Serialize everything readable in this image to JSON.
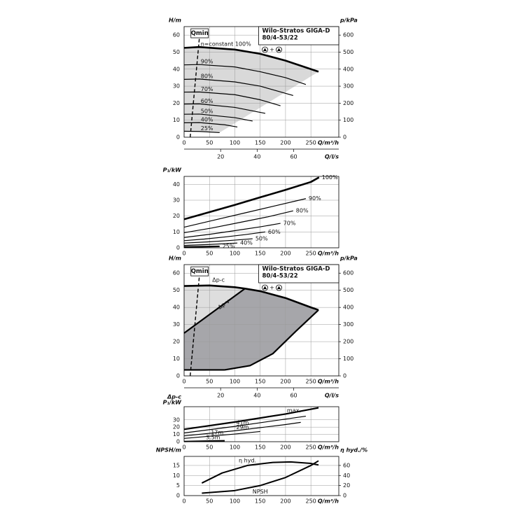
{
  "chart_data": [
    {
      "type": "line",
      "ylabel": "H/m",
      "y2label": "p/kPa",
      "xlabel": "Q/m³/h",
      "x2label": "Q/l/s",
      "model": [
        "Wilo-Stratos GIGA-D",
        "80/4-53/22"
      ],
      "symbol_join": "+",
      "xlim": [
        0,
        305
      ],
      "xticks": [
        0,
        50,
        100,
        150,
        200,
        250
      ],
      "x2lim": [
        0,
        84.7
      ],
      "x2ticks": [
        20,
        40,
        60
      ],
      "ylim": [
        0,
        65
      ],
      "yticks": [
        0,
        10,
        20,
        30,
        40,
        50,
        60
      ],
      "y2lim": [
        0,
        650
      ],
      "y2ticks": [
        0,
        100,
        200,
        300,
        400,
        500,
        600
      ],
      "grid": true,
      "fill_color": "#d9d9d9",
      "series": [
        {
          "name": "n=constant 100%",
          "color": "#000000",
          "width": 2.6,
          "x": [
            0,
            30,
            100,
            150,
            200,
            250,
            265
          ],
          "values": [
            52.5,
            53,
            51.5,
            49,
            45,
            40,
            38.5
          ]
        },
        {
          "name": "90%",
          "color": "#000000",
          "width": 1.2,
          "x": [
            0,
            30,
            100,
            150,
            200,
            240
          ],
          "values": [
            42.5,
            42.7,
            41.3,
            38.5,
            35,
            31
          ]
        },
        {
          "name": "80%",
          "color": "#000000",
          "width": 1.2,
          "x": [
            0,
            30,
            100,
            150,
            215
          ],
          "values": [
            34,
            34.2,
            32.5,
            30,
            24.5
          ]
        },
        {
          "name": "70%",
          "color": "#000000",
          "width": 1.2,
          "x": [
            0,
            30,
            100,
            150,
            190
          ],
          "values": [
            26.5,
            26.6,
            25,
            22,
            18.5
          ]
        },
        {
          "name": "60%",
          "color": "#000000",
          "width": 1.2,
          "x": [
            0,
            30,
            100,
            160
          ],
          "values": [
            19.5,
            19.6,
            17.5,
            14
          ]
        },
        {
          "name": "50%",
          "color": "#000000",
          "width": 1.2,
          "x": [
            0,
            30,
            100,
            135
          ],
          "values": [
            13.5,
            13.6,
            11.5,
            9.5
          ]
        },
        {
          "name": "40%",
          "color": "#000000",
          "width": 1.2,
          "x": [
            0,
            30,
            80,
            105
          ],
          "values": [
            8.5,
            8.6,
            7.3,
            6
          ]
        },
        {
          "name": "25%",
          "color": "#000000",
          "width": 1.2,
          "x": [
            0,
            30,
            70
          ],
          "values": [
            3.5,
            3.4,
            2.7
          ]
        },
        {
          "name": "Qmin",
          "color": "#000000",
          "width": 1.4,
          "dash": true,
          "x": [
            12,
            30
          ],
          "values": [
            0,
            58
          ]
        }
      ]
    },
    {
      "type": "line",
      "ylabel": "P₁/kW",
      "xlabel": "Q/m³/h",
      "xlim": [
        0,
        305
      ],
      "xticks": [
        0,
        50,
        100,
        150,
        200,
        250
      ],
      "ylim": [
        0,
        45
      ],
      "yticks": [
        0,
        10,
        20,
        30,
        40
      ],
      "grid": true,
      "series": [
        {
          "name": "100%",
          "color": "#000000",
          "width": 2.6,
          "x": [
            0,
            50,
            100,
            150,
            200,
            250,
            266
          ],
          "values": [
            18,
            22.5,
            27,
            31.8,
            36.5,
            41.5,
            44.4
          ]
        },
        {
          "name": "90%",
          "color": "#000000",
          "width": 1.2,
          "x": [
            0,
            60,
            120,
            180,
            240
          ],
          "values": [
            13,
            17.5,
            22,
            26.5,
            31
          ]
        },
        {
          "name": "80%",
          "color": "#000000",
          "width": 1.2,
          "x": [
            0,
            55,
            110,
            165,
            215
          ],
          "values": [
            9.5,
            12.5,
            16,
            19.5,
            23.3
          ]
        },
        {
          "name": "70%",
          "color": "#000000",
          "width": 1.2,
          "x": [
            0,
            50,
            100,
            150,
            190
          ],
          "values": [
            6.5,
            8.5,
            10.8,
            13.2,
            15.4
          ]
        },
        {
          "name": "60%",
          "color": "#000000",
          "width": 1.2,
          "x": [
            0,
            40,
            80,
            120,
            160
          ],
          "values": [
            4.5,
            5.5,
            6.8,
            8.3,
            10
          ]
        },
        {
          "name": "50%",
          "color": "#000000",
          "width": 1.2,
          "x": [
            0,
            45,
            90,
            135
          ],
          "values": [
            3,
            3.7,
            4.6,
            5.7
          ]
        },
        {
          "name": "40%",
          "color": "#000000",
          "width": 1.2,
          "x": [
            0,
            50,
            105
          ],
          "values": [
            1.5,
            2.1,
            3
          ]
        },
        {
          "name": "25%",
          "color": "#000000",
          "width": 2.2,
          "x": [
            0,
            35,
            70
          ],
          "values": [
            0.5,
            0.7,
            0.9
          ]
        }
      ]
    },
    {
      "type": "line",
      "ylabel": "H/m",
      "y2label": "p/kPa",
      "xlabel": "Q/m³/h",
      "x2label": "Q/l/s",
      "model": [
        "Wilo-Stratos GIGA-D",
        "80/4-53/22"
      ],
      "symbol_join": "+",
      "xlim": [
        0,
        305
      ],
      "xticks": [
        0,
        50,
        100,
        150,
        200,
        250
      ],
      "x2lim": [
        0,
        84.7
      ],
      "x2ticks": [
        20,
        40,
        60
      ],
      "ylim": [
        0,
        65
      ],
      "yticks": [
        0,
        10,
        20,
        30,
        40,
        50,
        60
      ],
      "y2lim": [
        0,
        650
      ],
      "y2ticks": [
        0,
        100,
        200,
        300,
        400,
        500,
        600
      ],
      "grid": true,
      "fill_colors": [
        "#dedede",
        "#a6a6aa"
      ],
      "series": [
        {
          "name": "Δp-c",
          "color": "#000000",
          "width": 2.6,
          "x": [
            0,
            50,
            100,
            120,
            150,
            200,
            250,
            265
          ],
          "values": [
            52.5,
            52.8,
            51.8,
            51,
            49.5,
            45.5,
            40,
            38.5
          ]
        },
        {
          "name": "Δp-v",
          "color": "#000000",
          "width": 2.2,
          "x": [
            0,
            120
          ],
          "values": [
            25,
            51
          ]
        },
        {
          "color": "#000000",
          "width": 2.2,
          "x": [
            265,
            220,
            175,
            130,
            80
          ],
          "values": [
            38.5,
            26,
            13,
            6,
            3.5
          ]
        },
        {
          "color": "#000000",
          "width": 2.2,
          "x": [
            0,
            80
          ],
          "values": [
            3.5,
            3.5
          ]
        },
        {
          "name": "Qmin",
          "color": "#000000",
          "width": 1.4,
          "dash": true,
          "x": [
            12,
            30
          ],
          "values": [
            0,
            58
          ]
        }
      ]
    },
    {
      "type": "line",
      "ylabel": [
        "Δp-c",
        "P₁/kW"
      ],
      "xlabel": "Q/m³/h",
      "xlim": [
        0,
        305
      ],
      "xticks": [
        0,
        50,
        100,
        150,
        200,
        250
      ],
      "ylim": [
        0,
        48
      ],
      "yticks": [
        0,
        10,
        20,
        30
      ],
      "grid": true,
      "series": [
        {
          "name": "max.",
          "color": "#000000",
          "width": 2.2,
          "x": [
            0,
            100,
            200,
            265
          ],
          "values": [
            17,
            27,
            38,
            46.5
          ]
        },
        {
          "name": "41m",
          "color": "#000000",
          "width": 1.2,
          "x": [
            0,
            100,
            200,
            240
          ],
          "values": [
            12,
            21,
            31,
            35
          ]
        },
        {
          "name": "29m",
          "color": "#000000",
          "width": 1.2,
          "x": [
            0,
            100,
            200,
            230
          ],
          "values": [
            8,
            15,
            23.5,
            26.5
          ]
        },
        {
          "name": "17m",
          "color": "#000000",
          "width": 1.2,
          "x": [
            0,
            50,
            100,
            150
          ],
          "values": [
            4.5,
            7.5,
            10.5,
            14
          ]
        },
        {
          "name": "3.5m",
          "color": "#000000",
          "width": 2,
          "x": [
            0,
            40,
            80
          ],
          "values": [
            0.3,
            0.8,
            1.3
          ]
        }
      ]
    },
    {
      "type": "line",
      "ylabel": "NPSH/m",
      "y2label": "η hyd./%",
      "xlabel": "Q/m³/h",
      "xlim": [
        0,
        305
      ],
      "xticks": [
        0,
        50,
        100,
        150,
        200,
        250
      ],
      "ylim": [
        0,
        19.5
      ],
      "yticks": [
        0,
        5,
        10,
        15
      ],
      "y2lim": [
        0,
        78
      ],
      "y2ticks": [
        0,
        20,
        40,
        60
      ],
      "grid": true,
      "series": [
        {
          "name": "η hyd.",
          "color": "#000000",
          "width": 2,
          "axis": "y2",
          "x": [
            35,
            75,
            125,
            175,
            210,
            250,
            265
          ],
          "values": [
            25,
            45,
            60,
            66,
            67,
            64,
            61
          ]
        },
        {
          "name": "NPSH",
          "color": "#000000",
          "width": 2,
          "x": [
            35,
            100,
            150,
            200,
            250,
            265
          ],
          "values": [
            1.2,
            2.5,
            5,
            9,
            15,
            17.3
          ]
        }
      ]
    }
  ]
}
